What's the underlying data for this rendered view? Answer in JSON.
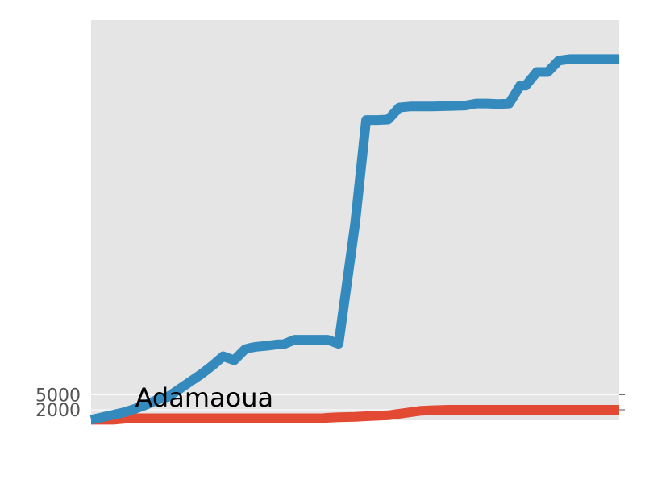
{
  "chart_data": {
    "type": "line",
    "title": "",
    "xlabel": "",
    "ylabel": "",
    "ylim": [
      -100,
      80000
    ],
    "yticks": [
      2000,
      5000
    ],
    "grid": true,
    "background": "#e5e5e5",
    "annotation": {
      "text": "Adamaoua",
      "x": 8,
      "y": 2000
    },
    "x": [
      0,
      2,
      4,
      6,
      8,
      10,
      12,
      14,
      16,
      18,
      20,
      22,
      24,
      26,
      28,
      29,
      30,
      32,
      34,
      35,
      37,
      40,
      42,
      43,
      45,
      48,
      50,
      52,
      54,
      56,
      58,
      60,
      62,
      65,
      68,
      70,
      72,
      74,
      76,
      78,
      79,
      81,
      83,
      85,
      87,
      88,
      90,
      92,
      94,
      96
    ],
    "series": [
      {
        "color": "#348abd",
        "values": [
          0,
          500,
          1000,
          1500,
          2200,
          3000,
          4000,
          4600,
          6100,
          7600,
          9100,
          10800,
          12700,
          11900,
          14100,
          14400,
          14600,
          14800,
          15100,
          15100,
          16000,
          16000,
          16000,
          16000,
          15200,
          39300,
          60000,
          60000,
          60100,
          62500,
          62700,
          62700,
          62700,
          62800,
          62900,
          63300,
          63300,
          63200,
          63300,
          66900,
          66900,
          69600,
          69600,
          71900,
          72200,
          72200,
          72200,
          72200,
          72200,
          72200
        ]
      },
      {
        "color": "#e24a33",
        "values": [
          0,
          0,
          0,
          200,
          300,
          300,
          300,
          300,
          300,
          300,
          300,
          300,
          300,
          300,
          300,
          300,
          300,
          300,
          300,
          300,
          300,
          300,
          300,
          400,
          500,
          600,
          700,
          800,
          900,
          1200,
          1500,
          1800,
          1900,
          2000,
          2000,
          2000,
          2000,
          2000,
          2000,
          2000,
          2000,
          2000,
          2000,
          2000,
          2000,
          2000,
          2000,
          2000,
          2000,
          2000
        ]
      }
    ]
  }
}
